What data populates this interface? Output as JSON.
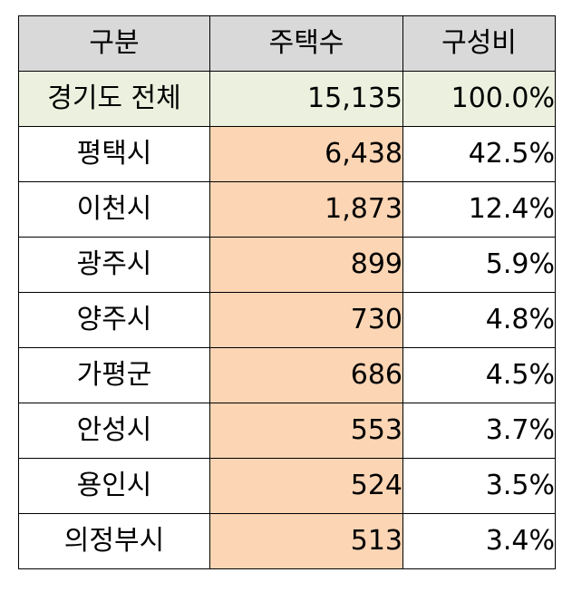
{
  "table": {
    "headers": [
      "구분",
      "주택수",
      "구성비"
    ],
    "total": {
      "region": "경기도 전체",
      "count": "15,135",
      "ratio": "100.0%"
    },
    "rows": [
      {
        "region": "평택시",
        "count": "6,438",
        "ratio": "42.5%"
      },
      {
        "region": "이천시",
        "count": "1,873",
        "ratio": "12.4%"
      },
      {
        "region": "광주시",
        "count": "899",
        "ratio": "5.9%"
      },
      {
        "region": "양주시",
        "count": "730",
        "ratio": "4.8%"
      },
      {
        "region": "가평군",
        "count": "686",
        "ratio": "4.5%"
      },
      {
        "region": "안성시",
        "count": "553",
        "ratio": "3.7%"
      },
      {
        "region": "용인시",
        "count": "524",
        "ratio": "3.5%"
      },
      {
        "region": "의정부시",
        "count": "513",
        "ratio": "3.4%"
      }
    ]
  },
  "colors": {
    "header_bg": "#d9d9d9",
    "total_bg": "#ebf1de",
    "highlight_bg": "#fcd5b4",
    "border": "#000000"
  }
}
